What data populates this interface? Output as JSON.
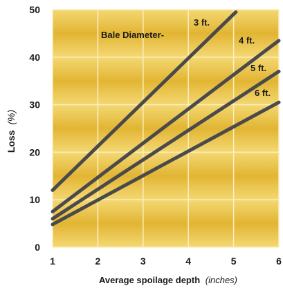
{
  "chart_data": {
    "type": "line",
    "xlabel": "Average spoilage depth",
    "xlabel_unit": "(inches)",
    "ylabel": "Loss",
    "ylabel_unit": "(%)",
    "xlim": [
      1,
      6
    ],
    "ylim": [
      0,
      50
    ],
    "x_ticks": [
      1,
      2,
      3,
      4,
      5,
      6
    ],
    "y_ticks": [
      0,
      10,
      20,
      30,
      40,
      50
    ],
    "grid": true,
    "annotation": "Bale Diameter-",
    "series": [
      {
        "name": "3 ft.",
        "x": [
          1,
          5.05
        ],
        "y": [
          12,
          49.5
        ]
      },
      {
        "name": "4 ft.",
        "x": [
          1,
          6
        ],
        "y": [
          7.5,
          43.5
        ]
      },
      {
        "name": "5 ft.",
        "x": [
          1,
          6
        ],
        "y": [
          6,
          37
        ]
      },
      {
        "name": "6 ft.",
        "x": [
          1,
          6
        ],
        "y": [
          4.8,
          30.5
        ]
      }
    ],
    "colors": {
      "band_light": "#f4d873",
      "band_dark": "#e2b533",
      "grid": "#fbefc2",
      "line": "#4a4a4a"
    }
  }
}
